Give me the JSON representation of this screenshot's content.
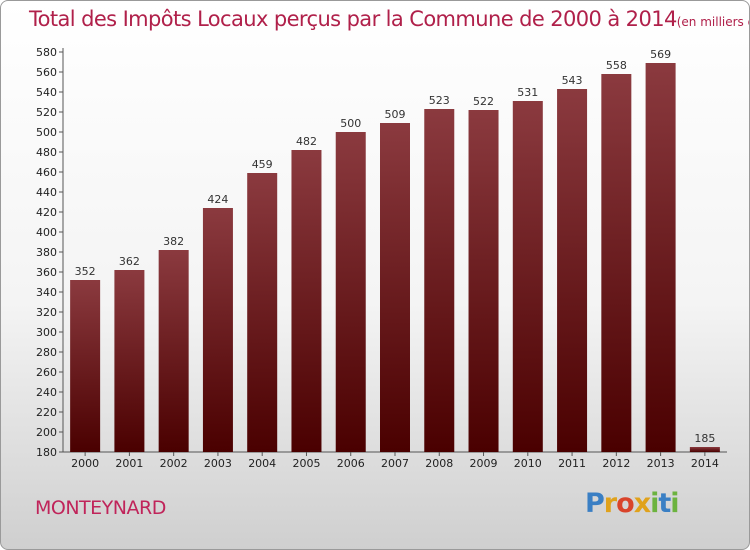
{
  "header": {
    "title": "Total des Impôts Locaux perçus par la Commune de 2000 à 2014",
    "unit": "(en milliers d'€)"
  },
  "footer": {
    "commune": "MONTEYNARD",
    "logo": {
      "letters": [
        "P",
        "r",
        "o",
        "x",
        "i",
        "t",
        "i"
      ],
      "colors": [
        "#3a7fc4",
        "#e0a21c",
        "#d9442b",
        "#e0a21c",
        "#6cb33f",
        "#3a7fc4",
        "#6cb33f"
      ]
    }
  },
  "chart_data": {
    "type": "bar",
    "categories": [
      "2000",
      "2001",
      "2002",
      "2003",
      "2004",
      "2005",
      "2006",
      "2007",
      "2008",
      "2009",
      "2010",
      "2011",
      "2012",
      "2013",
      "2014"
    ],
    "values": [
      352,
      362,
      382,
      424,
      459,
      482,
      500,
      509,
      523,
      522,
      531,
      543,
      558,
      569,
      185
    ],
    "ylim": [
      180,
      580
    ],
    "ytick_step": 20,
    "grid": false,
    "bar_color_top": "#8b3a3f",
    "bar_color_bottom": "#4a0000",
    "xlabel": "",
    "ylabel": ""
  }
}
